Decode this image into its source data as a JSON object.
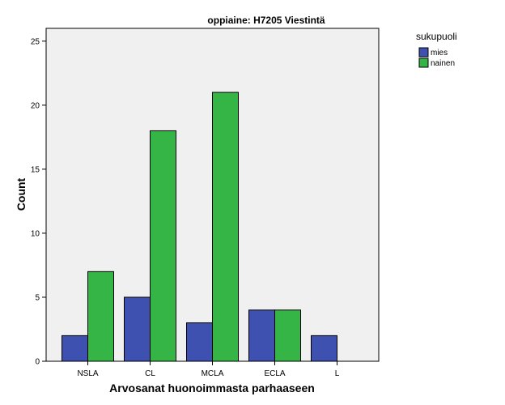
{
  "chart_data": {
    "type": "bar",
    "title": "oppiaine: H7205 Viestintä",
    "xlabel": "Arvosanat huonoimmasta parhaaseen",
    "ylabel": "Count",
    "categories": [
      "NSLA",
      "CL",
      "MCLA",
      "ECLA",
      "L"
    ],
    "series": [
      {
        "name": "mies",
        "values": [
          2,
          5,
          3,
          4,
          2
        ],
        "color": "#3f51b0"
      },
      {
        "name": "nainen",
        "values": [
          7,
          18,
          21,
          4,
          0
        ],
        "color": "#35b546"
      }
    ],
    "ylim": [
      0,
      26
    ],
    "yticks": [
      0,
      5,
      10,
      15,
      20,
      25
    ],
    "legend_title": "sukupuoli",
    "legend_position": "top-right-outside",
    "grid": false,
    "plot_background": "#f0f0f0"
  }
}
